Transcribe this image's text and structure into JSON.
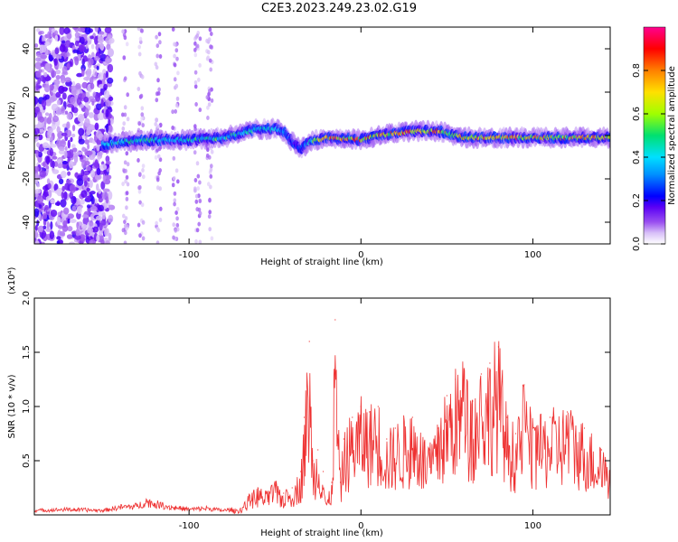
{
  "figure_title": "C2E3.2023.249.23.02.G19",
  "chart_data": [
    {
      "type": "heatmap",
      "xlabel": "Height of straight line (km)",
      "ylabel": "Frequency (Hz)",
      "xlim": [
        -190,
        145
      ],
      "ylim": [
        -50,
        50
      ],
      "x_ticks": [
        -100,
        0,
        100
      ],
      "y_ticks": [
        -40,
        -20,
        0,
        20,
        40
      ],
      "colorbar": {
        "label": "Normalized spectral amplitude",
        "range": [
          0.0,
          1.0
        ],
        "ticks": [
          0.0,
          0.2,
          0.4,
          0.6,
          0.8
        ],
        "colormap": [
          "#ffffff",
          "#c090f0",
          "#6a00f5",
          "#0000ff",
          "#00e5ff",
          "#00e060",
          "#c8ff00",
          "#ffe000",
          "#ff8000",
          "#ff0000",
          "#ff0090"
        ]
      },
      "trace": {
        "x": [
          -150,
          -140,
          -120,
          -100,
          -80,
          -60,
          -50,
          -45,
          -40,
          -35,
          -30,
          -20,
          0,
          10,
          20,
          30,
          40,
          45,
          60,
          80,
          100,
          120,
          140,
          145
        ],
        "frequency": [
          -4,
          -3,
          -2,
          -2,
          -1,
          3,
          3,
          2,
          -3,
          -6,
          -3,
          -1,
          -2,
          0,
          1,
          2,
          2,
          2,
          -1,
          -1,
          -1,
          -1,
          -1,
          -1
        ],
        "peak_amplitude": [
          0.5,
          0.55,
          0.55,
          0.55,
          0.6,
          0.5,
          0.45,
          0.35,
          0.25,
          0.3,
          0.5,
          0.9,
          0.9,
          0.9,
          0.95,
          0.95,
          0.95,
          0.9,
          0.85,
          0.85,
          0.85,
          0.85,
          0.85,
          0.85
        ]
      }
    },
    {
      "type": "line",
      "xlabel": "Height of straight line (km)",
      "ylabel": "SNR (10 * v/v)",
      "y_multiplier": "(x10⁴)",
      "xlim": [
        -190,
        145
      ],
      "ylim": [
        0.0,
        2.0
      ],
      "x_ticks": [
        -100,
        0,
        100
      ],
      "y_ticks": [
        0.5,
        1.0,
        1.5,
        2.0
      ],
      "color": "#ee3030",
      "series": [
        {
          "x": [
            -190,
            -170,
            -150,
            -140,
            -130,
            -125,
            -120,
            -110,
            -100,
            -90,
            -80,
            -70,
            -65,
            -60,
            -55,
            -50,
            -45,
            -40,
            -35,
            -33,
            -30,
            -28,
            -25,
            -22,
            -20,
            -17,
            -15,
            -12,
            -10,
            -5,
            0,
            5,
            10,
            15,
            20,
            30,
            40,
            45,
            50,
            55,
            60,
            65,
            70,
            75,
            80,
            85,
            90,
            95,
            100,
            110,
            120,
            130,
            140,
            145
          ],
          "values": [
            0.04,
            0.05,
            0.04,
            0.07,
            0.08,
            0.12,
            0.1,
            0.07,
            0.05,
            0.06,
            0.04,
            0.06,
            0.18,
            0.25,
            0.2,
            0.3,
            0.2,
            0.25,
            0.4,
            0.9,
            1.6,
            0.5,
            0.6,
            0.4,
            0.1,
            0.3,
            1.8,
            0.3,
            0.7,
            0.9,
            1.0,
            0.95,
            1.0,
            0.7,
            0.8,
            0.9,
            0.6,
            0.8,
            1.1,
            1.25,
            1.35,
            1.05,
            1.3,
            1.4,
            1.55,
            0.9,
            0.75,
            1.2,
            0.8,
            0.9,
            0.95,
            0.8,
            0.6,
            0.5
          ]
        }
      ]
    }
  ]
}
